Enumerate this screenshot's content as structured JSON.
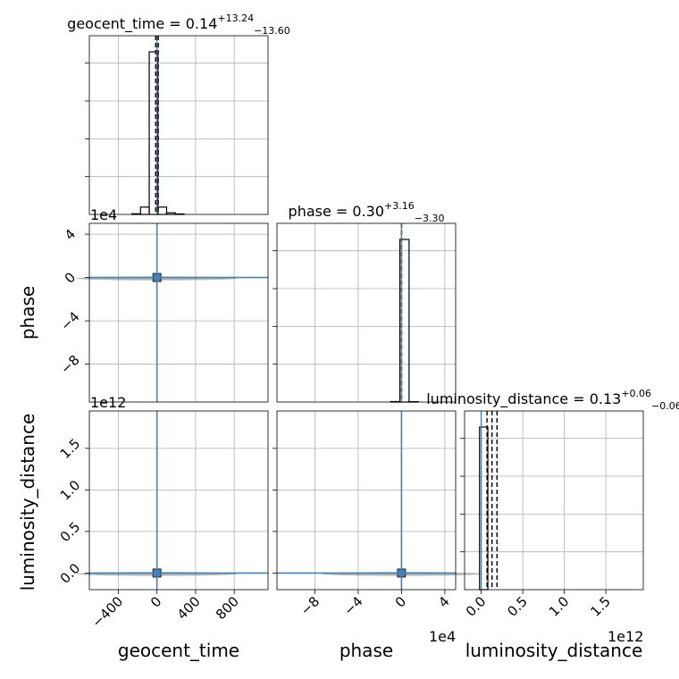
{
  "chart_data": [
    {
      "type": "histogram",
      "title_param": "geocent_time",
      "title_median": "0.14",
      "title_plus": "+13.24",
      "title_minus": "−13.60",
      "xlim": [
        -700,
        1150
      ],
      "bins": [
        {
          "x0": -260,
          "x1": -170,
          "v": 0.004
        },
        {
          "x0": -170,
          "x1": -80,
          "v": 0.045
        },
        {
          "x0": -80,
          "x1": 10,
          "v": 1.0
        },
        {
          "x0": 10,
          "x1": 100,
          "v": 0.045
        },
        {
          "x0": 100,
          "x1": 190,
          "v": 0.01
        },
        {
          "x0": 190,
          "x1": 280,
          "v": 0.003
        }
      ],
      "ylim": [
        0,
        1.0
      ],
      "quantile_lines": [
        -13.46,
        0.14,
        13.38
      ],
      "truth": 0
    },
    {
      "type": "histogram",
      "title_param": "phase",
      "title_median": "0.30",
      "title_plus": "+3.16",
      "title_minus": "−3.30",
      "xlim": [
        -115000,
        50000
      ],
      "bins": [
        {
          "x0": -10000,
          "x1": -1500,
          "v": 0.003
        },
        {
          "x0": -1500,
          "x1": 7000,
          "v": 1.0
        },
        {
          "x0": 7000,
          "x1": 15500,
          "v": 0.002
        }
      ],
      "ylim": [
        0,
        1.0
      ],
      "quantile_lines": [
        -3.0,
        0.3,
        3.46
      ],
      "truth": 0
    },
    {
      "type": "histogram",
      "title_param": "luminosity_distance",
      "title_median": "0.13",
      "title_plus": "+0.06",
      "title_minus": "−0.06",
      "xlim": [
        -200000000000.0,
        1950000000000.0
      ],
      "bins": [
        {
          "x0": -20000000000.0,
          "x1": 80000000000.0,
          "v": 1.0
        }
      ],
      "ylim": [
        0,
        1.0
      ],
      "quantile_lines": [
        0.07,
        0.13,
        0.19
      ],
      "truth": 0
    },
    {
      "type": "scatter",
      "x_param": "geocent_time",
      "y_param": "phase",
      "xlim": [
        -700,
        1150
      ],
      "ylim": [
        -115000,
        50000
      ],
      "truth": [
        0,
        0
      ],
      "density_peak": [
        0,
        0
      ]
    },
    {
      "type": "scatter",
      "x_param": "geocent_time",
      "y_param": "luminosity_distance",
      "xlim": [
        -700,
        1150
      ],
      "ylim": [
        -200000000000.0,
        1950000000000.0
      ],
      "truth": [
        0,
        0
      ],
      "density_peak": [
        0,
        0
      ]
    },
    {
      "type": "scatter",
      "x_param": "phase",
      "y_param": "luminosity_distance",
      "xlim": [
        -115000,
        50000
      ],
      "ylim": [
        -200000000000.0,
        1950000000000.0
      ],
      "truth": [
        0,
        0
      ],
      "density_peak": [
        0,
        0
      ]
    }
  ],
  "axes": {
    "xlabel_1": "geocent_time",
    "xlabel_2": "phase",
    "xlabel_3": "luminosity_distance",
    "ylabel_row2": "phase",
    "ylabel_row3": "luminosity_distance",
    "offset_phase_y": "1e4",
    "offset_ld_y": "1e12",
    "offset_phase_x": "1e4",
    "offset_ld_x": "1e12",
    "ticks_geocent_x": [
      "−400",
      "0",
      "400",
      "800"
    ],
    "ticks_geocent_x_values": [
      -400,
      0,
      400,
      800
    ],
    "ticks_phase_y": [
      "4",
      "0",
      "−4",
      "−8"
    ],
    "ticks_phase_y_values": [
      4,
      0,
      -4,
      -8
    ],
    "ticks_phase_x": [
      "−8",
      "−4",
      "0",
      "4"
    ],
    "ticks_phase_x_values": [
      -8,
      -4,
      0,
      4
    ],
    "ticks_ld_y": [
      "1.5",
      "1.0",
      "0.5",
      "0.0"
    ],
    "ticks_ld_y_values": [
      1.5,
      1.0,
      0.5,
      0.0
    ],
    "ticks_ld_x": [
      "0.0",
      "0.5",
      "1.0",
      "1.5"
    ],
    "ticks_ld_x_values": [
      0.0,
      0.5,
      1.0,
      1.5
    ]
  },
  "colors": {
    "truth": "#4682b4",
    "hist": "#000000",
    "grid": "#b0b0b0"
  }
}
